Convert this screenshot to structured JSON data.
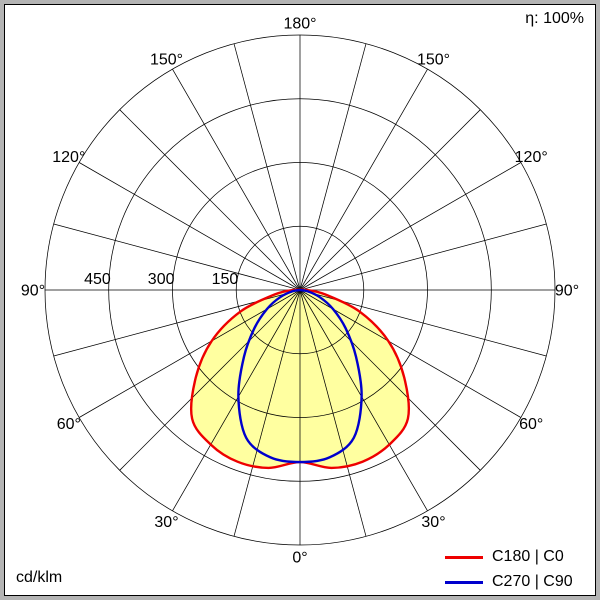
{
  "header": {
    "efficiency": "η: 100%"
  },
  "footer": {
    "unit": "cd/klm"
  },
  "chart_data": {
    "type": "line",
    "polar": true,
    "subtype": "luminous-intensity-distribution",
    "title": "",
    "unit": "cd/klm",
    "efficiency_pct": 100,
    "angle_tick_labels_deg": [
      0,
      30,
      60,
      90,
      120,
      150,
      180
    ],
    "spoke_step_deg": 15,
    "radial_circles": [
      150,
      300,
      450,
      600
    ],
    "radial_axis_labels": [
      150,
      300,
      450
    ],
    "r_max": 600,
    "symmetric": true,
    "gamma_deg": [
      0,
      10,
      20,
      30,
      40,
      50,
      60,
      70,
      80,
      90
    ],
    "series": [
      {
        "name": "C180 | C0",
        "color": "#ee0000",
        "fill": "#ffffa0",
        "values_cd_per_klm": [
          405,
          425,
          430,
          420,
          395,
          320,
          240,
          150,
          60,
          15
        ]
      },
      {
        "name": "C270 | C90",
        "color": "#0000cd",
        "fill": null,
        "values_cd_per_klm": [
          405,
          400,
          370,
          290,
          205,
          140,
          90,
          50,
          18,
          0
        ]
      }
    ],
    "legend_position": "bottom-right",
    "grid": true
  }
}
